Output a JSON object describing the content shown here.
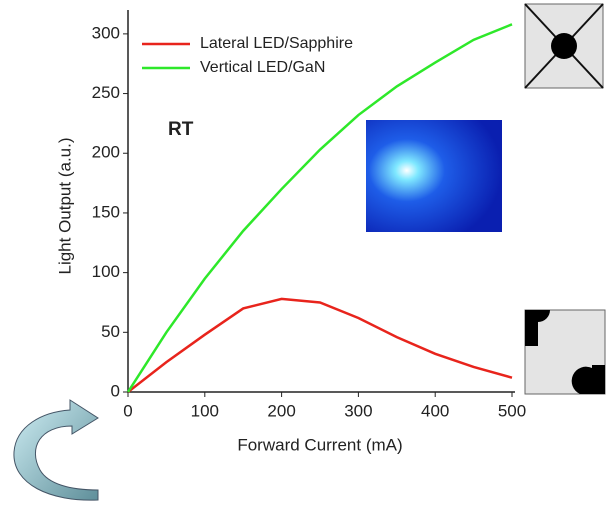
{
  "chart_data": {
    "type": "line",
    "x_label": "Forward Current (mA)",
    "y_label": "Light Output (a.u.)",
    "annotation": "RT",
    "x": [
      0,
      50,
      100,
      150,
      200,
      250,
      300,
      350,
      400,
      450,
      500
    ],
    "series": [
      {
        "name": "Lateral LED/Sapphire",
        "color": "#e8241c",
        "values": [
          0,
          25,
          48,
          70,
          78,
          75,
          62,
          46,
          32,
          21,
          12
        ]
      },
      {
        "name": "Vertical LED/GaN",
        "color": "#2ee82a",
        "values": [
          0,
          50,
          95,
          135,
          170,
          203,
          232,
          256,
          276,
          295,
          308
        ]
      }
    ],
    "xlim": [
      0,
      500
    ],
    "ylim": [
      0,
      320
    ],
    "xticks": [
      0,
      100,
      200,
      300,
      400,
      500
    ],
    "yticks": [
      0,
      50,
      100,
      150,
      200,
      250,
      300
    ],
    "legend": "upper left",
    "grid": false
  }
}
